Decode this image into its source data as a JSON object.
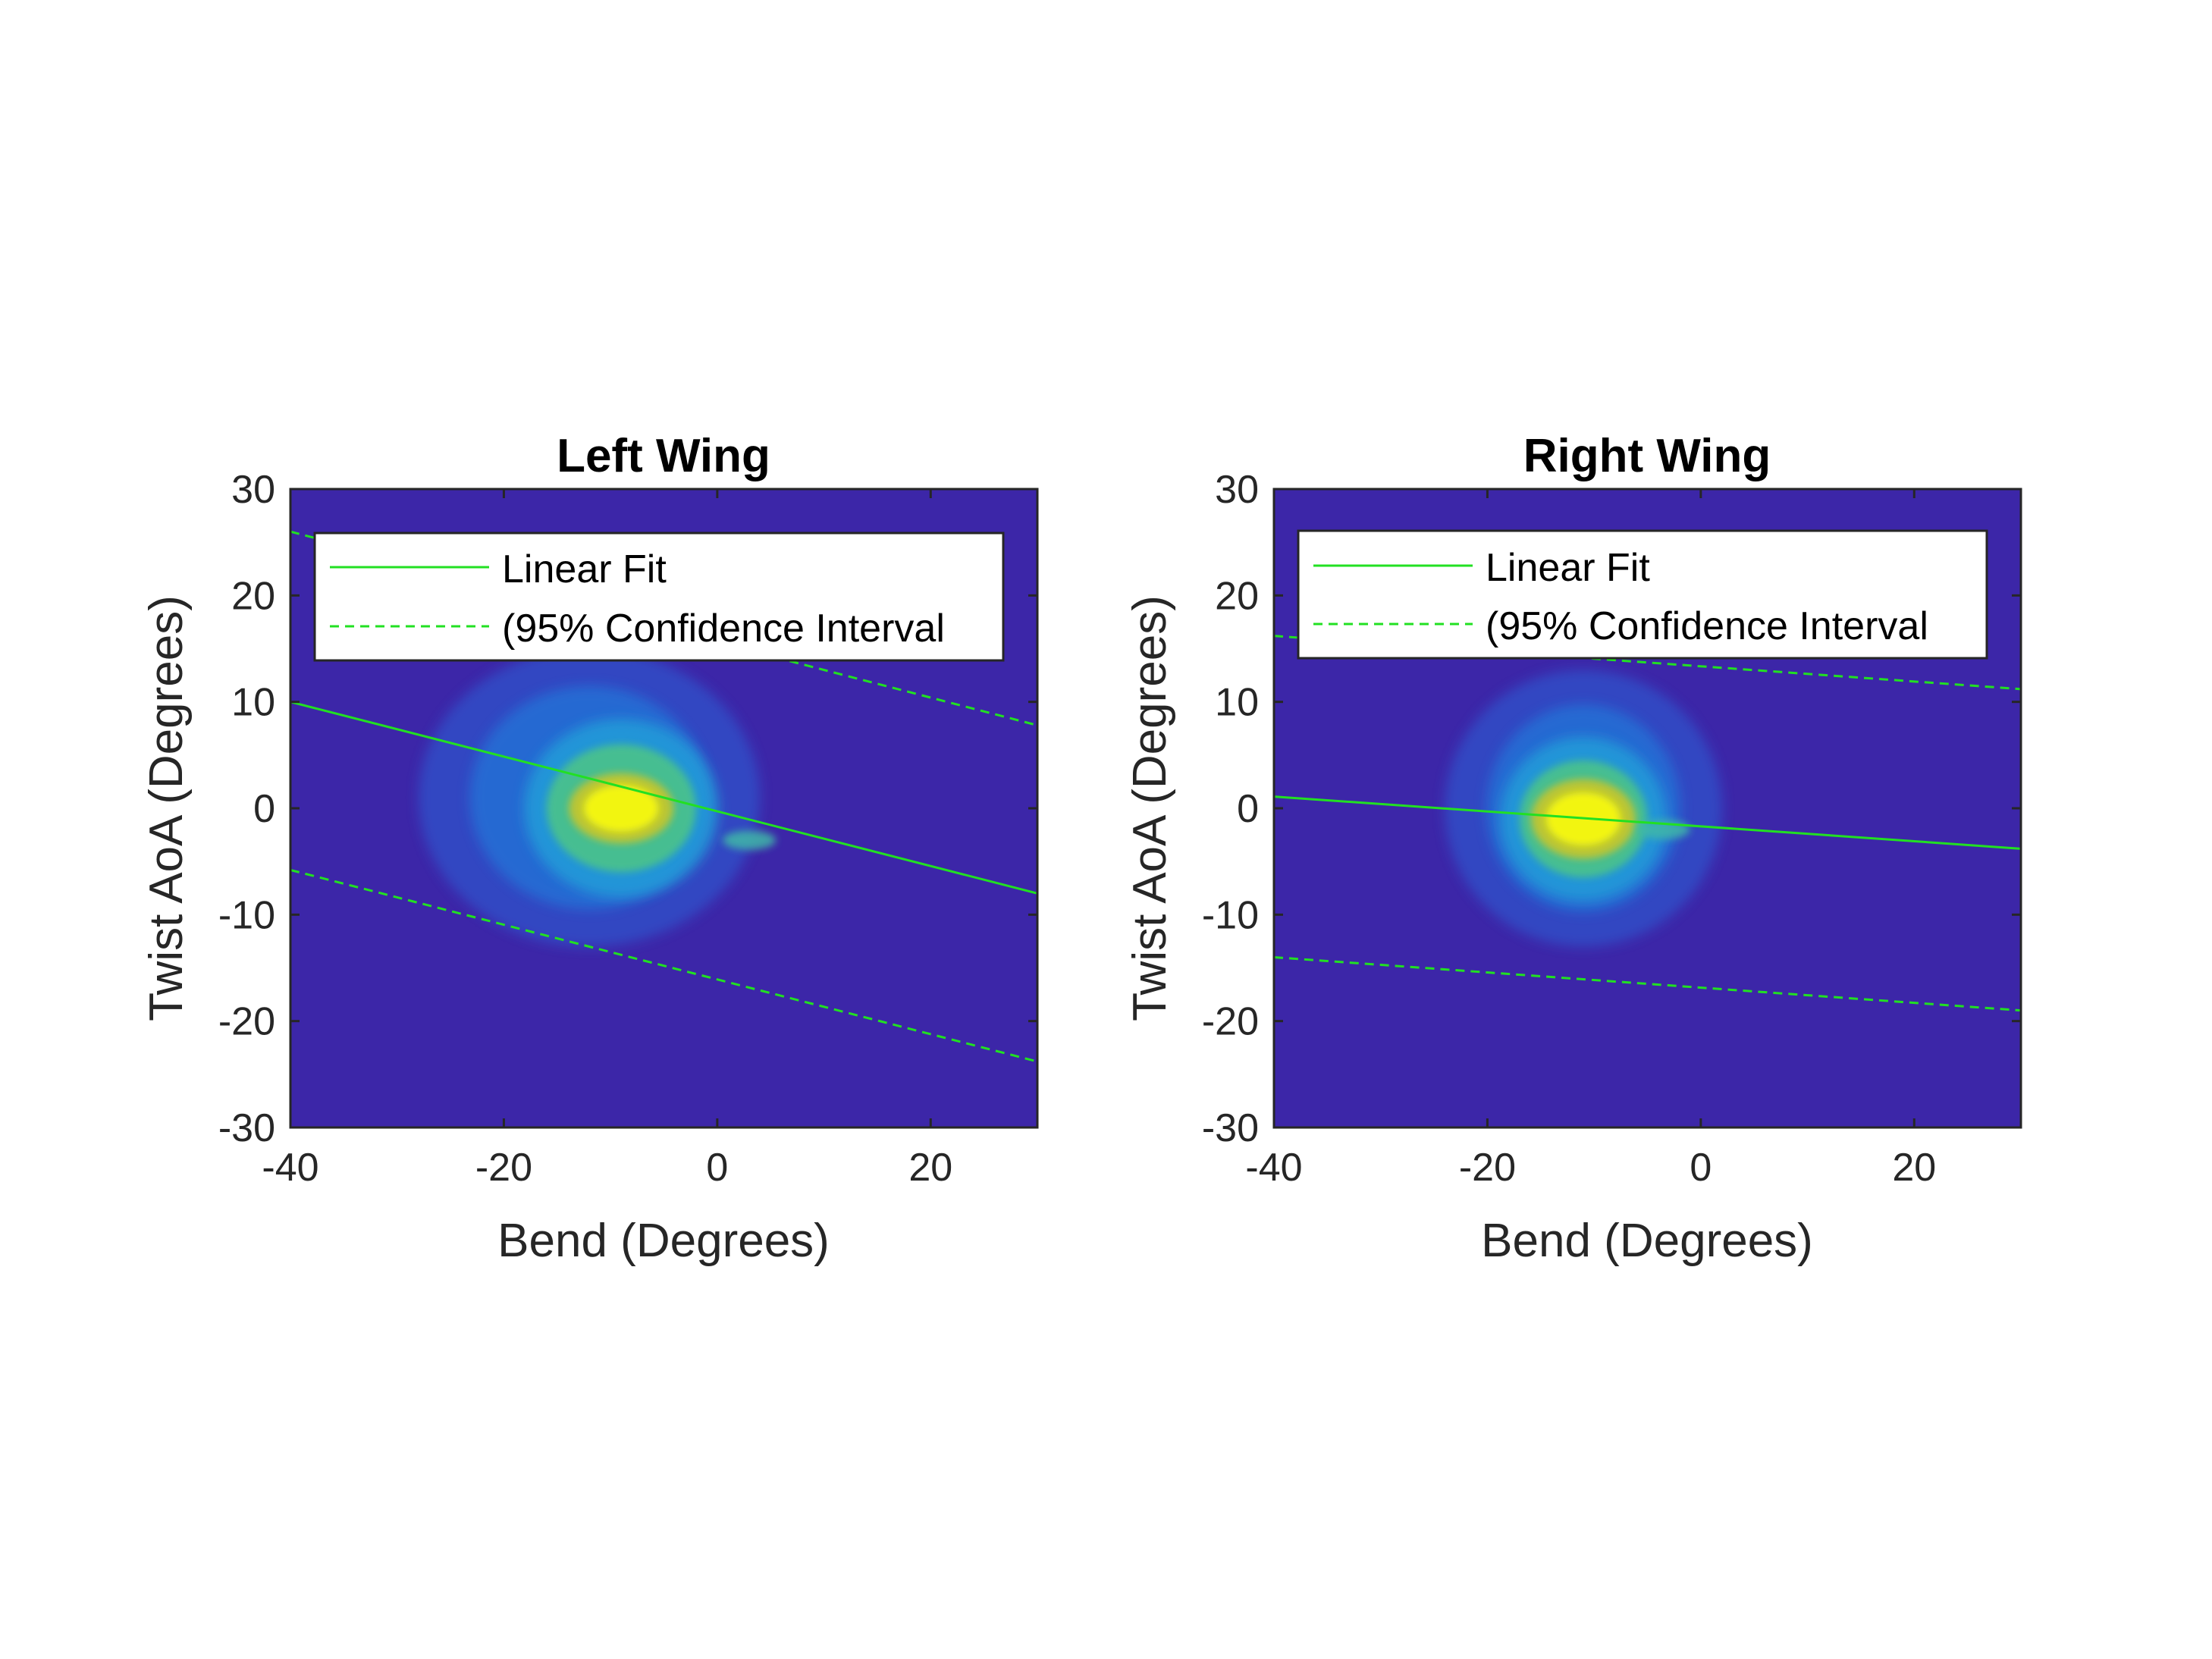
{
  "colors": {
    "background": "#3c26a8",
    "fit_line": "#22e022",
    "density_low": "#3c26a8",
    "density_mid": "#21a0d9",
    "density_high": "#f9fb0e"
  },
  "chart_data": [
    {
      "type": "heatmap",
      "title": "Left Wing",
      "xlabel": "Bend (Degrees)",
      "ylabel": "Twist AoA (Degrees)",
      "xlim": [
        -40,
        30
      ],
      "ylim": [
        -30,
        30
      ],
      "xticks": [
        "-40",
        "-20",
        "0",
        "20"
      ],
      "xtick_values": [
        -40,
        -20,
        0,
        20
      ],
      "yticks": [
        "-30",
        "-20",
        "-10",
        "0",
        "10",
        "20",
        "30"
      ],
      "ytick_values": [
        -30,
        -20,
        -10,
        0,
        10,
        20,
        30
      ],
      "grid": false,
      "legend_placement": "top",
      "legend": {
        "fit_label": "Linear Fit",
        "ci_label": "(95% Confidence Interval"
      },
      "density": {
        "center": [
          -9,
          0
        ],
        "halo_center": [
          -12,
          1
        ],
        "halo_spread": [
          16,
          14
        ],
        "core_spread": [
          7,
          6
        ],
        "hot_spread": [
          3.5,
          2.2
        ],
        "extra_blob": [
          3,
          -3
        ]
      },
      "fit": {
        "x": [
          -40,
          30
        ],
        "y": [
          10,
          -8
        ]
      },
      "ci_upper": {
        "x": [
          -40,
          30
        ],
        "y": [
          26,
          7.8
        ]
      },
      "ci_lower": {
        "x": [
          -40,
          30
        ],
        "y": [
          -5.8,
          -23.8
        ]
      }
    },
    {
      "type": "heatmap",
      "title": "Right Wing",
      "xlabel": "Bend (Degrees)",
      "ylabel": "Twist AoA (Degrees)",
      "xlim": [
        -40,
        30
      ],
      "ylim": [
        -30,
        30
      ],
      "xticks": [
        "-40",
        "-20",
        "0",
        "20"
      ],
      "xtick_values": [
        -40,
        -20,
        0,
        20
      ],
      "yticks": [
        "-30",
        "-20",
        "-10",
        "0",
        "10",
        "20",
        "30"
      ],
      "ytick_values": [
        -30,
        -20,
        -10,
        0,
        10,
        20,
        30
      ],
      "grid": false,
      "legend_placement": "top",
      "legend": {
        "fit_label": "Linear Fit",
        "ci_label": "(95% Confidence Interval"
      },
      "density": {
        "center": [
          -11,
          -1
        ],
        "halo_center": [
          -11,
          0
        ],
        "halo_spread": [
          13,
          13
        ],
        "core_spread": [
          6,
          5.5
        ],
        "hot_spread": [
          3.5,
          2.5
        ],
        "extra_blob": [
          -3.5,
          -2
        ]
      },
      "fit": {
        "x": [
          -40,
          30
        ],
        "y": [
          1.1,
          -3.8
        ]
      },
      "ci_upper": {
        "x": [
          -40,
          30
        ],
        "y": [
          16.2,
          11.2
        ]
      },
      "ci_lower": {
        "x": [
          -40,
          30
        ],
        "y": [
          -14,
          -19
        ]
      }
    }
  ]
}
